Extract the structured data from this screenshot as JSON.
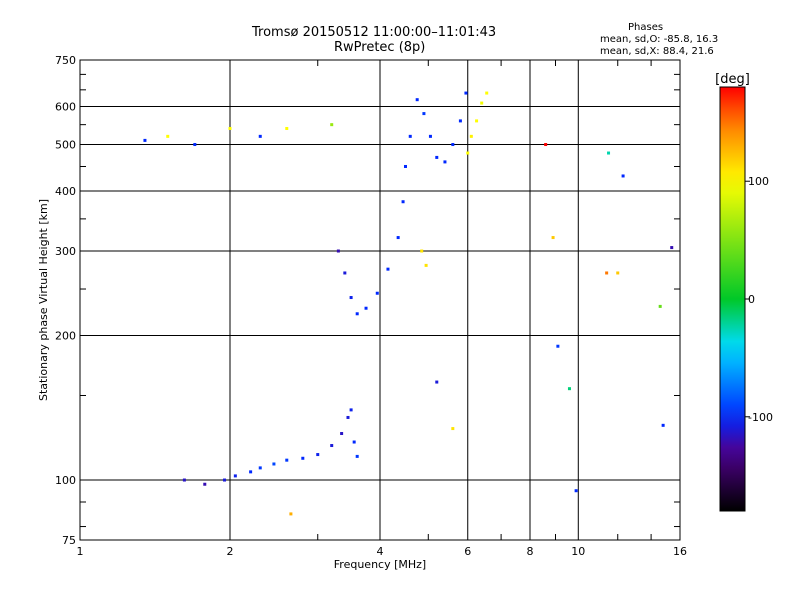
{
  "header": {
    "title_line1": "Tromsø 20150512 11:00:00–11:01:43",
    "title_line2": "RwPretec (8p)",
    "stats_title": "Phases",
    "stats_o": "mean, sd,O: -85.8, 16.3",
    "stats_x": "mean, sd,X:  88.4, 21.6"
  },
  "chart_data": {
    "type": "scatter",
    "xlabel": "Frequency [MHz]",
    "ylabel": "Stationary phase Virtual Height [km]",
    "x_scale": "log",
    "y_scale": "log",
    "xlim": [
      1,
      16
    ],
    "ylim": [
      75,
      750
    ],
    "x_ticks": [
      1,
      2,
      4,
      6,
      8,
      10,
      16
    ],
    "y_ticks": [
      75,
      100,
      200,
      300,
      400,
      500,
      600,
      750
    ],
    "x_grid": [
      2,
      4,
      6,
      8,
      10
    ],
    "y_grid": [
      100,
      200,
      300,
      400,
      500,
      600
    ],
    "colorbar": {
      "label": "[deg]",
      "range": [
        -180,
        180
      ],
      "ticks": [
        100,
        0,
        -100
      ]
    },
    "series": [
      {
        "color_mode": "phase",
        "points": [
          [
            1.62,
            100,
            -115
          ],
          [
            1.78,
            98,
            -120
          ],
          [
            1.95,
            100,
            -110
          ],
          [
            2.05,
            102,
            -105
          ],
          [
            2.2,
            104,
            -100
          ],
          [
            2.3,
            106,
            -95
          ],
          [
            2.45,
            108,
            -90
          ],
          [
            2.6,
            110,
            -95
          ],
          [
            2.8,
            111,
            -100
          ],
          [
            3.0,
            113,
            -105
          ],
          [
            3.2,
            118,
            -110
          ],
          [
            3.35,
            125,
            -115
          ],
          [
            3.45,
            135,
            -110
          ],
          [
            3.5,
            140,
            -105
          ],
          [
            3.55,
            120,
            -100
          ],
          [
            3.6,
            112,
            -95
          ],
          [
            3.3,
            300,
            -120
          ],
          [
            3.4,
            270,
            -110
          ],
          [
            3.5,
            240,
            -105
          ],
          [
            3.6,
            222,
            -100
          ],
          [
            3.75,
            228,
            -100
          ],
          [
            3.95,
            245,
            -100
          ],
          [
            4.15,
            275,
            -100
          ],
          [
            4.35,
            320,
            -100
          ],
          [
            4.45,
            380,
            -100
          ],
          [
            4.5,
            450,
            -100
          ],
          [
            4.6,
            520,
            -100
          ],
          [
            4.75,
            620,
            -100
          ],
          [
            4.9,
            580,
            -95
          ],
          [
            5.05,
            520,
            -100
          ],
          [
            5.2,
            470,
            -100
          ],
          [
            5.4,
            460,
            -100
          ],
          [
            5.6,
            500,
            -100
          ],
          [
            5.8,
            560,
            -100
          ],
          [
            5.95,
            640,
            -100
          ],
          [
            6.0,
            480,
            100
          ],
          [
            6.1,
            520,
            105
          ],
          [
            6.25,
            560,
            100
          ],
          [
            6.4,
            610,
            95
          ],
          [
            6.55,
            640,
            100
          ],
          [
            4.85,
            300,
            110
          ],
          [
            4.95,
            280,
            110
          ],
          [
            1.35,
            510,
            -100
          ],
          [
            1.5,
            520,
            100
          ],
          [
            1.7,
            500,
            -100
          ],
          [
            2.0,
            540,
            100
          ],
          [
            2.3,
            520,
            -100
          ],
          [
            2.6,
            540,
            100
          ],
          [
            3.2,
            550,
            60
          ],
          [
            8.6,
            500,
            180
          ],
          [
            8.9,
            320,
            120
          ],
          [
            9.1,
            190,
            -95
          ],
          [
            9.6,
            155,
            -15
          ],
          [
            9.9,
            95,
            -100
          ],
          [
            11.5,
            480,
            -25
          ],
          [
            11.4,
            270,
            150
          ],
          [
            12.0,
            270,
            120
          ],
          [
            12.3,
            430,
            -100
          ],
          [
            14.6,
            230,
            40
          ],
          [
            14.8,
            130,
            -100
          ],
          [
            15.4,
            305,
            -120
          ],
          [
            5.2,
            160,
            -110
          ],
          [
            5.6,
            128,
            110
          ],
          [
            2.65,
            85,
            130
          ]
        ]
      }
    ]
  }
}
